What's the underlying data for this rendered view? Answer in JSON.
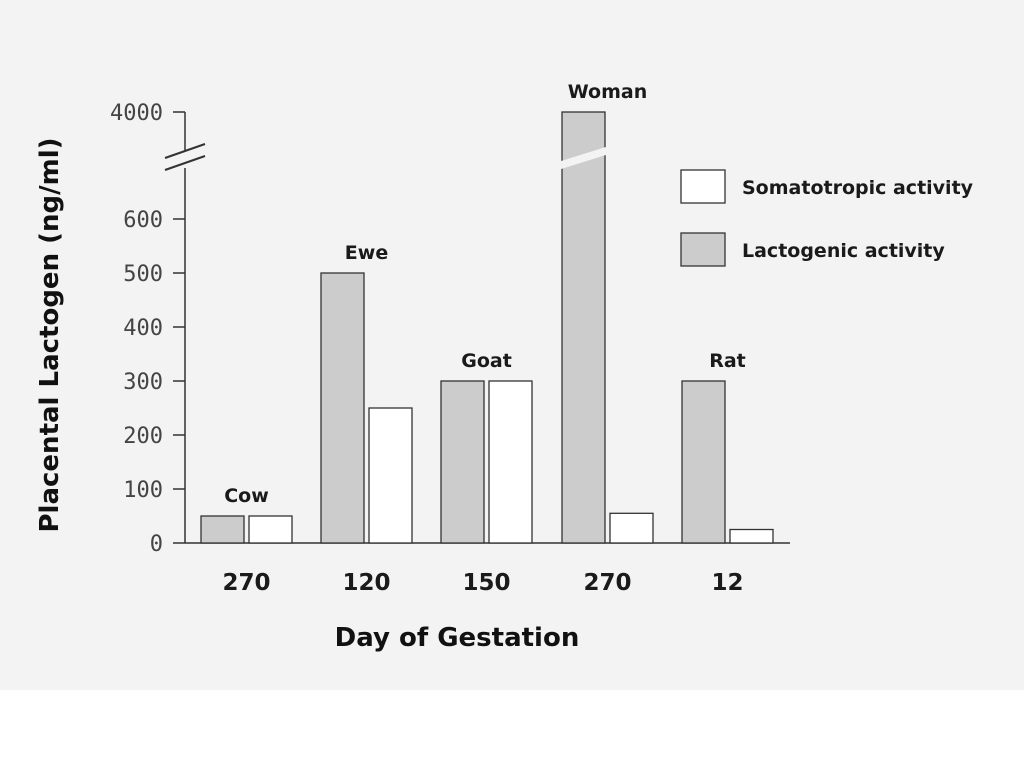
{
  "chart_data": {
    "type": "bar",
    "title": "",
    "xlabel": "Day of Gestation",
    "ylabel": "Placental Lactogen (ng/ml)",
    "categories": [
      "270",
      "120",
      "150",
      "270",
      "12"
    ],
    "bar_labels": [
      "Cow",
      "Ewe",
      "Goat",
      "Woman",
      "Rat"
    ],
    "series": [
      {
        "name": "Lactogenic activity",
        "color": "#cccccc",
        "values": [
          50,
          500,
          300,
          4000,
          300
        ]
      },
      {
        "name": "Somatotropic activity",
        "color": "#ffffff",
        "values": [
          50,
          250,
          300,
          55,
          25
        ]
      }
    ],
    "y_ticks": [
      "0",
      "100",
      "200",
      "300",
      "400",
      "500",
      "600",
      "4000"
    ],
    "ylim": [
      0,
      650
    ],
    "axis_break": {
      "from": 650,
      "to": 4000
    },
    "legend_position": "top-right",
    "legend_order": [
      "Somatotropic activity",
      "Lactogenic activity"
    ]
  }
}
